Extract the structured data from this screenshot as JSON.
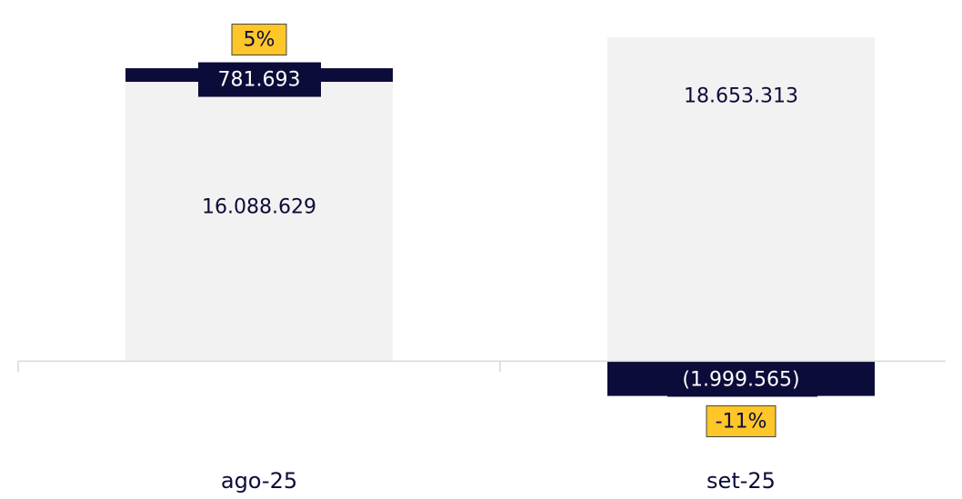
{
  "chart_data": {
    "type": "stacked_bar",
    "categories": [
      "ago-25",
      "set-25"
    ],
    "series": [
      {
        "name": null,
        "color": "#f2f2f2",
        "values": [
          16088629,
          18653313
        ],
        "value_labels": [
          "16.088.629",
          "18.653.313"
        ]
      },
      {
        "name": null,
        "color": "#0c0c3a",
        "values": [
          781693,
          -1999565
        ],
        "value_labels": [
          "781.693",
          "(1.999.565)"
        ]
      }
    ],
    "annotations": [
      "5%",
      "-11%"
    ],
    "annotation_color": "#ffc629",
    "ylim": [
      -3800000,
      20800000
    ]
  }
}
